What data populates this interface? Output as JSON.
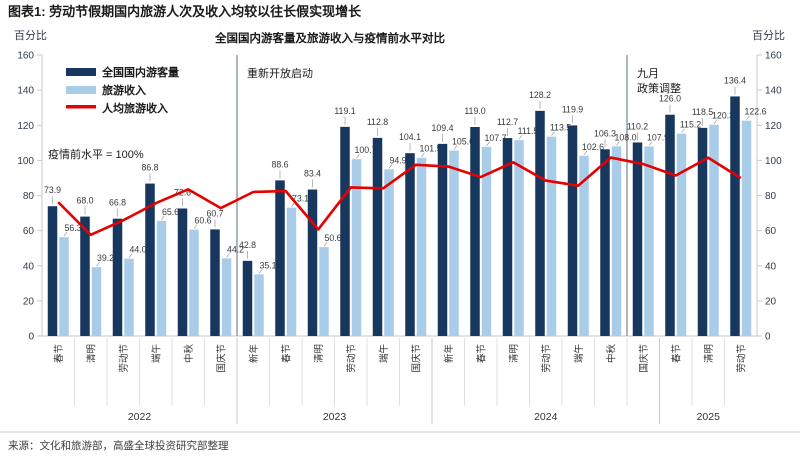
{
  "chart_data": {
    "type": "bar",
    "title": "图表1: 劳动节假期国内旅游人次及收入均较以往长假实现增长",
    "subtitle": "全国国内游客量及旅游收入与疫情前水平对比",
    "ylabel_left": "百分比",
    "ylabel_right": "百分比",
    "baseline_note": "疫情前水平 = 100%",
    "ylim": [
      0,
      160
    ],
    "ytick_step": 20,
    "grid": "off",
    "legend_position": "top-left",
    "groups": [
      {
        "year": "2022",
        "labels": [
          "春节",
          "清明",
          "劳动节",
          "端午",
          "中秋",
          "国庆节"
        ]
      },
      {
        "year": "2023",
        "labels": [
          "新年",
          "春节",
          "清明",
          "劳动节",
          "端午",
          "国庆节"
        ]
      },
      {
        "year": "2024",
        "labels": [
          "新年",
          "春节",
          "清明",
          "劳动节",
          "端午",
          "中秋",
          "国庆节"
        ]
      },
      {
        "year": "2025",
        "labels": [
          "春节",
          "清明",
          "劳动节"
        ]
      }
    ],
    "series": [
      {
        "name": "全国国内游客量",
        "type": "bar",
        "color": "#17375E",
        "values": [
          "73.9",
          "68.0",
          "66.8",
          "86.8",
          "72.6",
          "60.7",
          "42.8",
          "88.6",
          "83.4",
          "119.1",
          "112.8",
          "104.1",
          "109.4",
          "119.0",
          "112.7",
          "128.2",
          "119.9",
          "106.3",
          "110.2",
          "126.0",
          "118.5",
          "136.4"
        ]
      },
      {
        "name": "旅游收入",
        "type": "bar",
        "color": "#A9CDE9",
        "values": [
          "56.3",
          "39.2",
          "44.0",
          "65.6",
          "60.6",
          "44.2",
          "35.1",
          "73.1",
          "50.6",
          "100.7",
          "94.9",
          "101.5",
          "105.6",
          "107.7",
          "111.5",
          "113.5",
          "102.6",
          "108.0",
          "107.9",
          "115.2",
          "120.3",
          "122.6"
        ]
      },
      {
        "name": "人均旅游收入",
        "type": "line",
        "color": "#E60000",
        "values": [
          76.2,
          57.6,
          65.9,
          75.6,
          83.5,
          72.8,
          82.0,
          82.5,
          60.7,
          84.6,
          84.1,
          97.5,
          96.5,
          90.5,
          98.9,
          88.5,
          85.6,
          101.6,
          97.9,
          91.4,
          101.5,
          89.9
        ]
      }
    ],
    "annotations": [
      {
        "lines": [
          "重新开放启动"
        ],
        "after_group": 6
      },
      {
        "lines": [
          "九月",
          "政策调整"
        ],
        "after_group": 18
      }
    ],
    "source": "来源：文化和旅游部，高盛全球投资研究部整理"
  }
}
